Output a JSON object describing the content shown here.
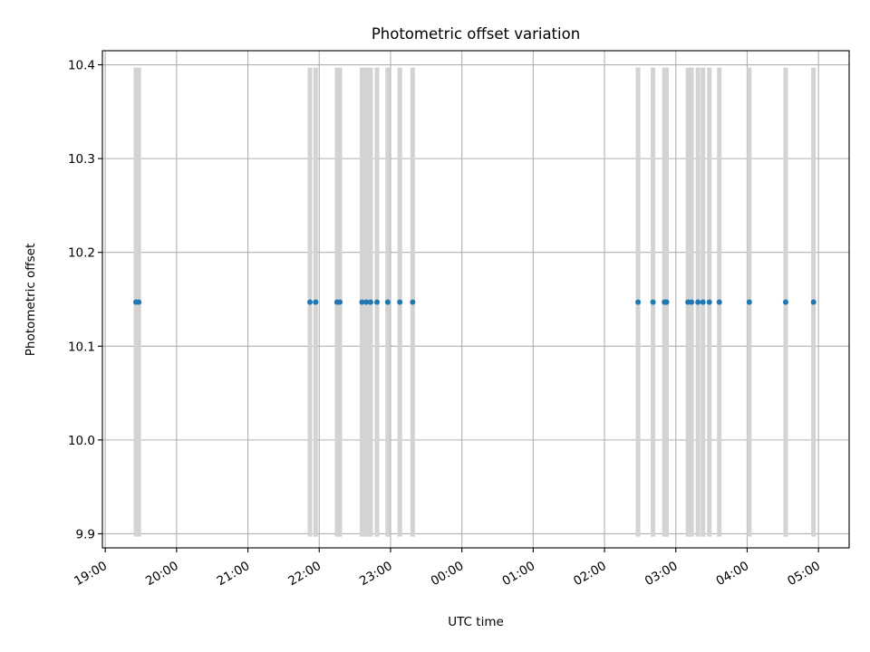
{
  "chart_data": {
    "type": "scatter",
    "title": "Photometric offset variation",
    "xlabel": "UTC time",
    "ylabel": "Photometric offset",
    "x_ticks": [
      "19:00",
      "20:00",
      "21:00",
      "22:00",
      "23:00",
      "00:00",
      "01:00",
      "02:00",
      "03:00",
      "04:00",
      "05:00"
    ],
    "x_tick_hours": [
      19,
      20,
      21,
      22,
      23,
      24,
      25,
      26,
      27,
      28,
      29
    ],
    "y_ticks": [
      9.9,
      10.0,
      10.1,
      10.2,
      10.3,
      10.4
    ],
    "xlim_hours": [
      18.96,
      29.43
    ],
    "ylim": [
      9.885,
      10.415
    ],
    "grid": true,
    "colors": {
      "points": "#1f77b4",
      "error_bars": "#d3d3d3"
    },
    "series": [
      {
        "y_value": 10.147,
        "y_error": 0.25,
        "x_hours": [
          19.43,
          19.47,
          21.87,
          21.95,
          22.25,
          22.29,
          22.6,
          22.66,
          22.72,
          22.81,
          22.96,
          23.13,
          23.31,
          26.47,
          26.68,
          26.84,
          26.87,
          27.17,
          27.22,
          27.31,
          27.38,
          27.47,
          27.61,
          28.03,
          28.54,
          28.93
        ]
      }
    ]
  }
}
